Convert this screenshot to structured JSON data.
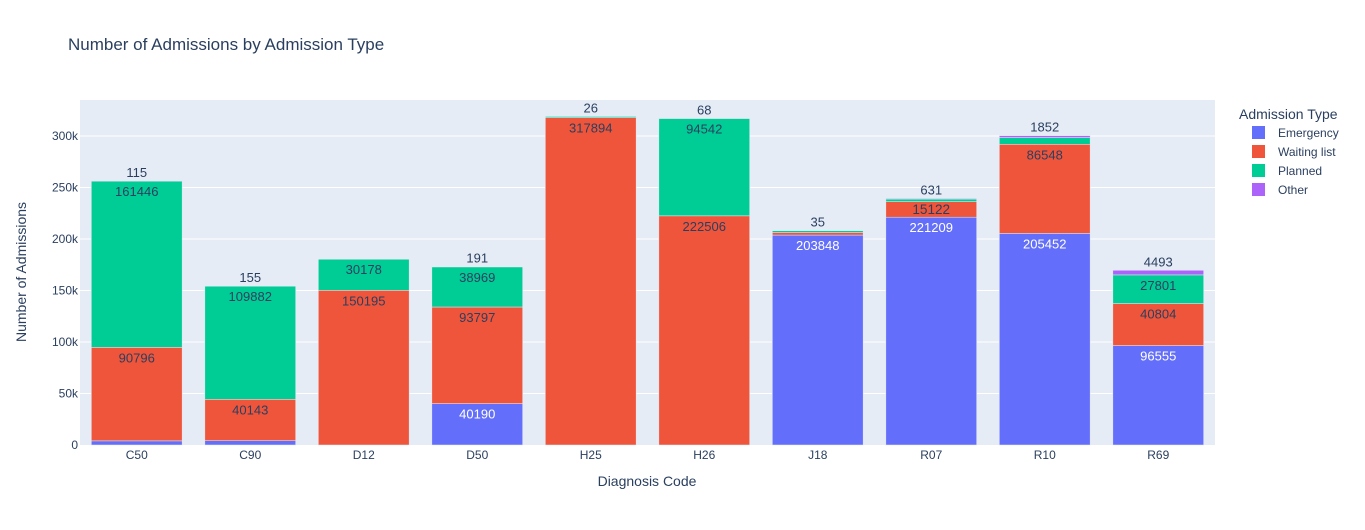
{
  "chart_data": {
    "type": "bar",
    "barmode": "stack",
    "title": "Number of Admissions by Admission Type",
    "xlabel": "Diagnosis Code",
    "ylabel": "Number of Admissions",
    "ylim": [
      0,
      335000
    ],
    "yticks": [
      0,
      50000,
      100000,
      150000,
      200000,
      250000,
      300000
    ],
    "ytick_labels": [
      "0",
      "50k",
      "100k",
      "150k",
      "200k",
      "250k",
      "300k"
    ],
    "grid": true,
    "legend_title": "Admission Type",
    "legend_position": "right",
    "categories": [
      "C50",
      "C90",
      "D12",
      "D50",
      "H25",
      "H26",
      "J18",
      "R07",
      "R10",
      "R69"
    ],
    "series": [
      {
        "name": "Emergency",
        "color": "#636efa",
        "values": [
          4000,
          4200,
          0,
          40190,
          0,
          0,
          203848,
          221209,
          205452,
          96555
        ],
        "labels": [
          "",
          "",
          "",
          "40190",
          "",
          "",
          "203848",
          "221209",
          "205452",
          "96555"
        ]
      },
      {
        "name": "Waiting list",
        "color": "#ef553b",
        "values": [
          90796,
          40143,
          150195,
          93797,
          317894,
          222506,
          2500,
          15122,
          86548,
          40804
        ],
        "labels": [
          "90796",
          "40143",
          "150195",
          "93797",
          "317894",
          "222506",
          "",
          "15122",
          "86548",
          "40804"
        ]
      },
      {
        "name": "Planned",
        "color": "#00cc96",
        "values": [
          161446,
          109882,
          30178,
          38969,
          1200,
          94542,
          1800,
          2500,
          6500,
          27801
        ],
        "labels": [
          "161446",
          "109882",
          "30178",
          "38969",
          "",
          "94542",
          "",
          "",
          "",
          "27801"
        ]
      },
      {
        "name": "Other",
        "color": "#ab63fa",
        "values": [
          115,
          155,
          0,
          191,
          26,
          68,
          35,
          631,
          1852,
          4493
        ],
        "labels": [
          "115",
          "155",
          "",
          "191",
          "26",
          "68",
          "35",
          "631",
          "1852",
          "4493"
        ]
      }
    ]
  }
}
